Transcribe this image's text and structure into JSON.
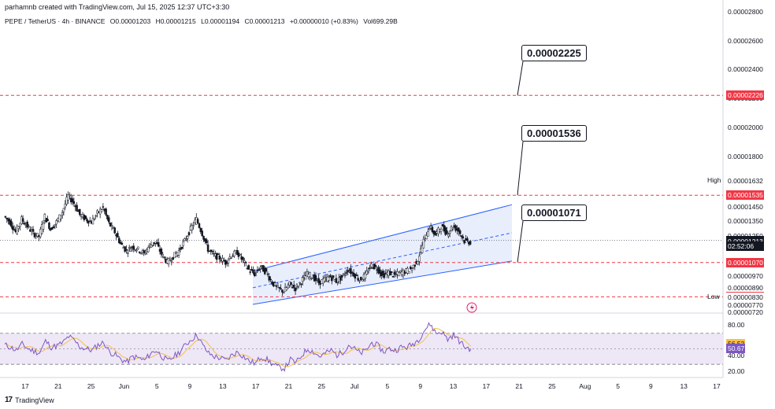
{
  "header": {
    "author_line": "parhamnb created with TradingView.com, Jul 15, 2025 12:37 UTC+3:30",
    "symbol": "PEPE / TetherUS · 4h · BINANCE",
    "open": "O0.00001203",
    "high": "H0.00001215",
    "low": "L0.00001194",
    "close": "C0.00001213",
    "change": "+0.00000010 (+0.83%)",
    "volume": "Vol699.29B"
  },
  "brand": {
    "icon": "tradingview-logo-icon",
    "label": "TradingView"
  },
  "callouts": [
    {
      "id": "top",
      "label": "0.00002225"
    },
    {
      "id": "mid",
      "label": "0.00001536"
    },
    {
      "id": "low",
      "label": "0.00001071"
    }
  ],
  "price_axis": {
    "ticks": [
      "0.00002800",
      "0.00002600",
      "0.00002400",
      "0.00002200",
      "0.00002000",
      "0.00001800",
      "0.00001632",
      "0.00001450",
      "0.00001350",
      "0.00001250",
      "0.00001070",
      "0.00000970",
      "0.00000890",
      "0.00000830",
      "0.00000770",
      "0.00000720"
    ],
    "tags": [
      {
        "label": "0.00002226",
        "value": 2.226e-05,
        "color": "#f23645"
      },
      {
        "label": "0.00001632",
        "value": 1.632e-05,
        "color": "#ffffff",
        "text": "#131722",
        "word": "High"
      },
      {
        "label": "0.00001535",
        "value": 1.535e-05,
        "color": "#f23645"
      },
      {
        "label": "0.00001223",
        "value": 1.223e-05,
        "color": "#131722"
      },
      {
        "label": "0.00001213",
        "value": 1.213e-05,
        "color": "#131722"
      },
      {
        "label": "02:52:06",
        "value": 1.18e-05,
        "color": "#131722"
      },
      {
        "label": "0.00001070",
        "value": 1.07e-05,
        "color": "#f23645"
      },
      {
        "label": "0.00000832",
        "value": 8.32e-06,
        "color": "#f23645"
      },
      {
        "label": "0.00000830",
        "value": 8.3e-06,
        "color": "#ffffff",
        "text": "#131722",
        "word": "Low"
      }
    ]
  },
  "rsi_axis": {
    "ticks": [
      "80.00",
      "40.00",
      "20.00"
    ],
    "tags": [
      {
        "label": "56.52",
        "value": 56.52,
        "color": "#f7c04a",
        "text": "#131722"
      },
      {
        "label": "50.67",
        "value": 50.67,
        "color": "#7e57c2"
      }
    ]
  },
  "time_axis": [
    "17",
    "21",
    "25",
    "Jun",
    "5",
    "9",
    "13",
    "17",
    "21",
    "25",
    "Jul",
    "5",
    "9",
    "13",
    "17",
    "21",
    "25",
    "Aug",
    "5",
    "9",
    "13",
    "17"
  ],
  "colors": {
    "candle": "#131722",
    "hline": "#f23645",
    "channel": "#2962ff",
    "channel_fill": "#e3eafc",
    "rsi": "#7e57c2",
    "rsi_ma": "#f7c04a",
    "rsi_band": "#ede7f6",
    "grid": "#f0f3fa"
  },
  "chart_data": {
    "type": "line",
    "price_ylim": [
      7.2e-06,
      2.81e-05
    ],
    "horizontal_levels": [
      2.226e-05,
      1.535e-05,
      1.07e-05,
      8.32e-06
    ],
    "channel": {
      "upper": [
        [
          0.0,
          1.01e-05
        ],
        [
          1.0,
          1.47e-05
        ]
      ],
      "lower": [
        [
          0.0,
          7.8e-06
        ],
        [
          1.0,
          1.08e-05
        ]
      ]
    },
    "price_path": [
      1.39e-05,
      1.35e-05,
      1.28e-05,
      1.37e-05,
      1.32e-05,
      1.27e-05,
      1.25e-05,
      1.39e-05,
      1.3e-05,
      1.35e-05,
      1.42e-05,
      1.53e-05,
      1.48e-05,
      1.4e-05,
      1.37e-05,
      1.35e-05,
      1.41e-05,
      1.45e-05,
      1.34e-05,
      1.28e-05,
      1.2e-05,
      1.15e-05,
      1.18e-05,
      1.16e-05,
      1.13e-05,
      1.19e-05,
      1.21e-05,
      1.13e-05,
      1.07e-05,
      1.11e-05,
      1.15e-05,
      1.22e-05,
      1.3e-05,
      1.37e-05,
      1.27e-05,
      1.16e-05,
      1.12e-05,
      1.1e-05,
      1.07e-05,
      1.12e-05,
      1.14e-05,
      1.08e-05,
      1.02e-05,
      9.9e-06,
      1.04e-05,
      1e-05,
      9.3e-06,
      8.9e-06,
      8.7e-06,
      9.2e-06,
      8.9e-06,
      9.4e-06,
      9.9e-06,
      9.7e-06,
      9.3e-06,
      9.5e-06,
      9.7e-06,
      9.4e-06,
      9.7e-06,
      1.02e-05,
      9.9e-06,
      9.5e-06,
      9.8e-06,
      1.05e-05,
      1.03e-05,
      9.8e-06,
      1e-05,
      9.8e-06,
      1e-05,
      1.01e-05,
      1.03e-05,
      1.09e-05,
      1.22e-05,
      1.32e-05,
      1.26e-05,
      1.32e-05,
      1.27e-05,
      1.32e-05,
      1.29e-05,
      1.22e-05,
      1.21e-05
    ],
    "rsi": [
      55,
      52,
      48,
      56,
      50,
      47,
      45,
      60,
      52,
      54,
      58,
      66,
      60,
      52,
      50,
      48,
      55,
      58,
      46,
      42,
      36,
      33,
      40,
      38,
      35,
      44,
      48,
      40,
      34,
      40,
      46,
      55,
      62,
      68,
      54,
      44,
      40,
      38,
      35,
      42,
      46,
      40,
      34,
      31,
      40,
      36,
      30,
      26,
      25,
      36,
      32,
      42,
      50,
      46,
      40,
      44,
      48,
      42,
      46,
      55,
      50,
      44,
      48,
      58,
      54,
      46,
      50,
      48,
      52,
      52,
      56,
      62,
      74,
      82,
      70,
      72,
      62,
      68,
      60,
      52,
      50
    ],
    "rsi_ylim": [
      15,
      90
    ],
    "rsi_band": [
      30,
      70
    ],
    "rsi_mid": 50
  }
}
